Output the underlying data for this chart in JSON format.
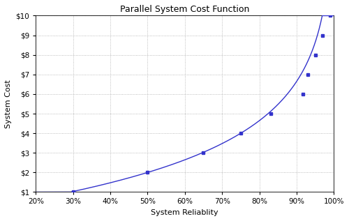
{
  "title": "Parallel System Cost Function",
  "xlabel": "System Reliablity",
  "ylabel": "System Cost",
  "xlim": [
    0.2,
    1.0
  ],
  "ylim": [
    1,
    10
  ],
  "xticks": [
    0.2,
    0.3,
    0.4,
    0.5,
    0.6,
    0.7,
    0.8,
    0.9,
    1.0
  ],
  "yticks": [
    1,
    2,
    3,
    4,
    5,
    6,
    7,
    8,
    9,
    10
  ],
  "unit_reliability": 0.2929,
  "marker_x": [
    0.3,
    0.5,
    0.65,
    0.75,
    0.83,
    0.917,
    0.93,
    0.95,
    0.97,
    0.99
  ],
  "marker_y": [
    1.0,
    2.0,
    3.0,
    4.0,
    5.0,
    6.0,
    7.0,
    8.0,
    9.0,
    10.0
  ],
  "line_color": "#3333cc",
  "marker_color": "#3333cc",
  "background_color": "#ffffff",
  "grid_color": "#aaaaaa",
  "title_fontsize": 9,
  "label_fontsize": 8,
  "tick_fontsize": 7.5
}
